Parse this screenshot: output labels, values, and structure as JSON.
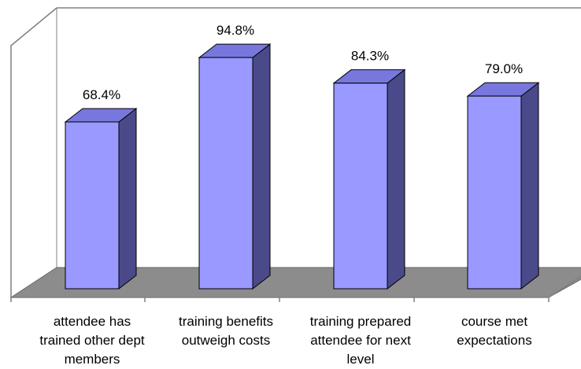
{
  "chart_data": {
    "type": "bar",
    "categories": [
      "attendee has\ntrained other dept\nmembers",
      "training benefits\noutweigh costs",
      "training prepared\nattendee for next\nlevel",
      "course met\nexpectations"
    ],
    "values": [
      68.4,
      94.8,
      84.3,
      79.0
    ],
    "data_labels": [
      "68.4%",
      "94.8%",
      "84.3%",
      "79.0%"
    ],
    "ylim": [
      0,
      100
    ],
    "grid": false,
    "legend": "none",
    "three_d": true,
    "colors": {
      "bar_front": "#9999ff",
      "bar_top": "#7777dd",
      "bar_side": "#4a4a8a",
      "floor": "#8c8c8c",
      "axis": "#808080"
    }
  }
}
